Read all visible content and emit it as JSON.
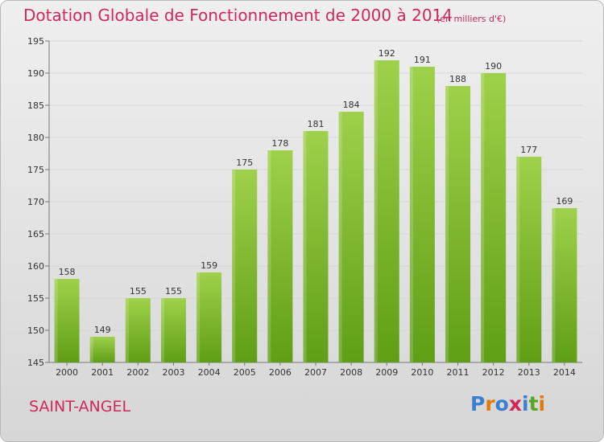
{
  "header": {
    "title": "Dotation Globale de Fonctionnement de 2000 à 2014",
    "unit": "(en milliers d'€)"
  },
  "footer": {
    "commune": "SAINT-ANGEL",
    "logo_text": "Proxiti"
  },
  "colors": {
    "title": "#d0285a",
    "bar_light": "#9fd14b",
    "bar_dark": "#5f9e15",
    "grid": "#d8d8d8",
    "logo": [
      "#3a7fd0",
      "#e07a10",
      "#3a7fd0",
      "#d0285a",
      "#3a7fd0",
      "#5aa524",
      "#e07a10"
    ]
  },
  "chart_data": {
    "type": "bar",
    "categories": [
      "2000",
      "2001",
      "2002",
      "2003",
      "2004",
      "2005",
      "2006",
      "2007",
      "2008",
      "2009",
      "2010",
      "2011",
      "2012",
      "2013",
      "2014"
    ],
    "values": [
      158,
      149,
      155,
      155,
      159,
      175,
      178,
      181,
      184,
      192,
      191,
      188,
      190,
      177,
      169
    ],
    "title": "Dotation Globale de Fonctionnement de 2000 à 2014",
    "subtitle": "(en milliers d'€)",
    "xlabel": "",
    "ylabel": "",
    "ylim": [
      145,
      195
    ],
    "yticks": [
      145,
      150,
      155,
      160,
      165,
      170,
      175,
      180,
      185,
      190,
      195
    ],
    "grid": true,
    "data_labels": true
  }
}
